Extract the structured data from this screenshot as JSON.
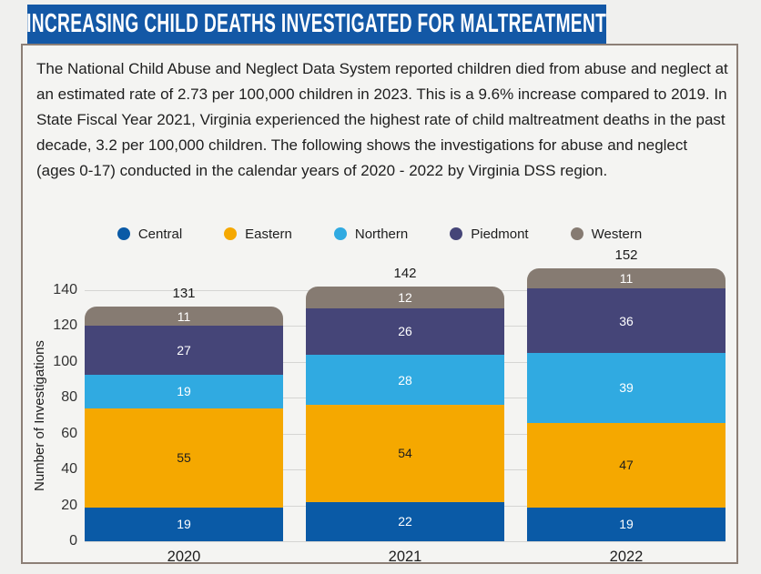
{
  "banner": {
    "title": "INCREASING CHILD DEATHS INVESTIGATED FOR MALTREATMENT"
  },
  "theme": {
    "page_bg": "#F0F0EE",
    "card_bg": "#F4F4F2",
    "card_border": "#8C7F76",
    "banner_bg": "#1358A6",
    "banner_text": "#FFFFFF",
    "grid_color": "#D5D5D3",
    "text_color": "#1E1E1E",
    "tick_color": "#333333"
  },
  "description": "The National Child Abuse and Neglect Data System reported children died from abuse and neglect at an estimated rate of 2.73 per 100,000 children in 2023. This is a 9.6% increase compared to 2019.  In State Fiscal Year 2021, Virginia experienced the highest rate of child maltreatment deaths in the past decade, 3.2 per 100,000 children. The following shows the investigations for abuse and neglect (ages 0-17) conducted in the calendar years of 2020 - 2022 by Virginia DSS region.",
  "chart_data": {
    "type": "bar",
    "stacked": true,
    "categories": [
      "2020",
      "2021",
      "2022"
    ],
    "series": [
      {
        "name": "Central",
        "color": "#0A5AA6",
        "label_color": "#FFFFFF",
        "values": [
          19,
          22,
          19
        ]
      },
      {
        "name": "Eastern",
        "color": "#F5A800",
        "label_color": "#1E1E1E",
        "values": [
          55,
          54,
          47
        ]
      },
      {
        "name": "Northern",
        "color": "#30AAE1",
        "label_color": "#FFFFFF",
        "values": [
          19,
          28,
          39
        ]
      },
      {
        "name": "Piedmont",
        "color": "#454578",
        "label_color": "#FFFFFF",
        "values": [
          27,
          26,
          36
        ]
      },
      {
        "name": "Western",
        "color": "#867B72",
        "label_color": "#FFFFFF",
        "values": [
          11,
          12,
          11
        ]
      }
    ],
    "totals": [
      131,
      142,
      152
    ],
    "title": "",
    "xlabel": "",
    "ylabel": "Number of Investigations",
    "ylim": [
      0,
      140
    ],
    "ytick_step": 20,
    "grid": true,
    "legend_position": "top"
  }
}
